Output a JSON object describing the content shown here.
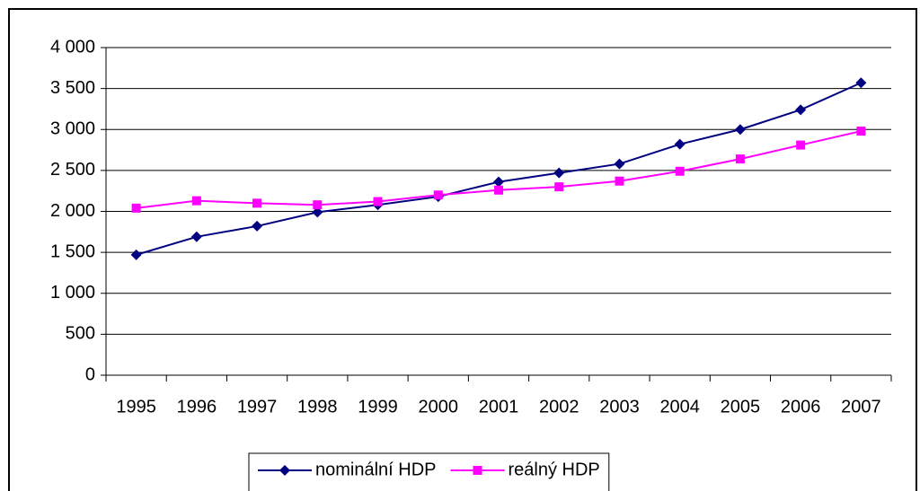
{
  "chart_data": {
    "type": "line",
    "categories": [
      "1995",
      "1996",
      "1997",
      "1998",
      "1999",
      "2000",
      "2001",
      "2002",
      "2003",
      "2004",
      "2005",
      "2006",
      "2007"
    ],
    "series": [
      {
        "name": "nominální HDP",
        "color": "#000080",
        "marker": "diamond",
        "values": [
          1470,
          1690,
          1820,
          1990,
          2080,
          2180,
          2360,
          2470,
          2580,
          2820,
          3000,
          3240,
          3570
        ]
      },
      {
        "name": "reálný HDP",
        "color": "#ff00ff",
        "marker": "square",
        "values": [
          2040,
          2130,
          2100,
          2080,
          2120,
          2200,
          2260,
          2300,
          2370,
          2490,
          2640,
          2810,
          2980
        ]
      }
    ],
    "ylim": [
      0,
      4000
    ],
    "yticks": [
      0,
      500,
      {
        "value": 1000,
        "label": "1 000"
      },
      {
        "value": 1500,
        "label": "1 500"
      },
      {
        "value": 2000,
        "label": "2 000"
      },
      {
        "value": 2500,
        "label": "2 500"
      },
      {
        "value": 3000,
        "label": "3 000"
      },
      {
        "value": 3500,
        "label": "3 500"
      },
      {
        "value": 4000,
        "label": "4 000"
      }
    ],
    "grid": true,
    "legend": "bottom"
  }
}
